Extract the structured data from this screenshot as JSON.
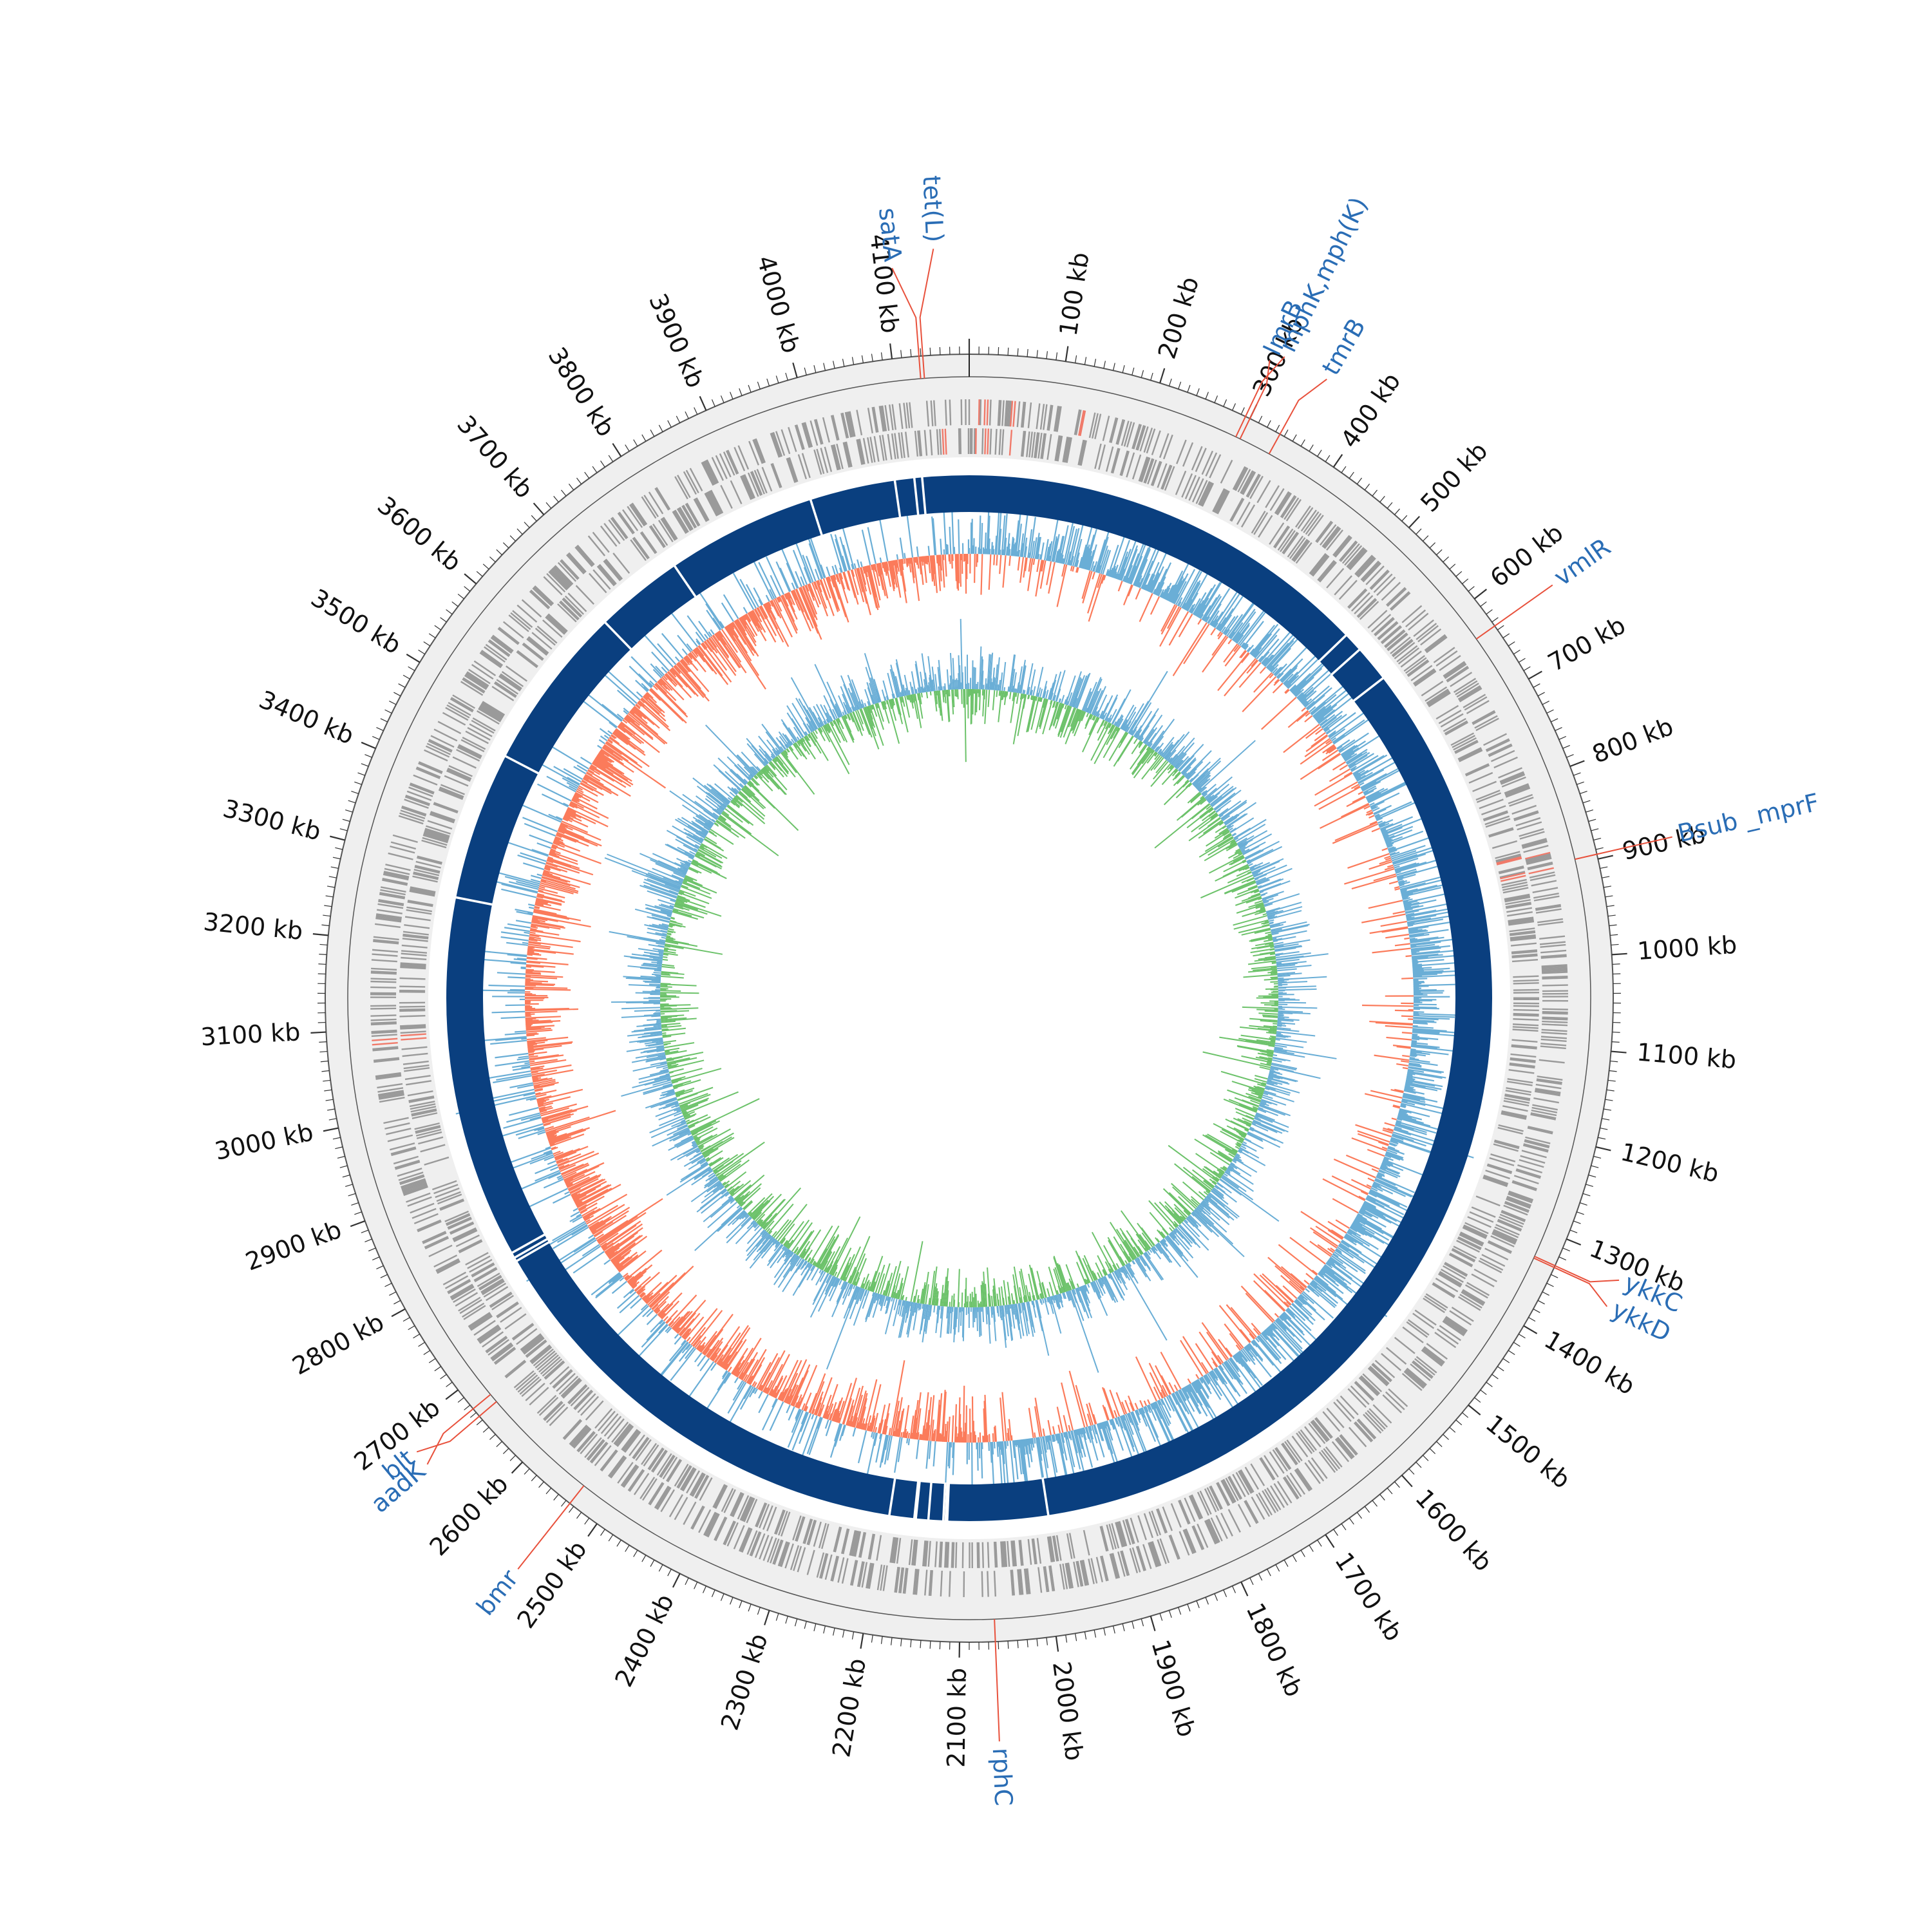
{
  "genome": {
    "length_kb": 4180
  },
  "colors": {
    "ring_background": "#efefef",
    "ring_outline": "#555555",
    "feature_gray": "#9a9a9a",
    "feature_red": "#f07a6a",
    "contig_blue": "#0a3f7f",
    "gc_above": "#6aaed6",
    "gc_below": "#fb7b5b",
    "skew_positive": "#6aaed6",
    "skew_negative": "#6cc26a",
    "label_blue": "#2a6db5",
    "leader_red": "#e8513c"
  },
  "ticks": [
    {
      "kb": 100,
      "label": "100 kb"
    },
    {
      "kb": 200,
      "label": "200 kb"
    },
    {
      "kb": 300,
      "label": "300 kb"
    },
    {
      "kb": 400,
      "label": "400 kb"
    },
    {
      "kb": 500,
      "label": "500 kb"
    },
    {
      "kb": 600,
      "label": "600 kb"
    },
    {
      "kb": 700,
      "label": "700 kb"
    },
    {
      "kb": 800,
      "label": "800 kb"
    },
    {
      "kb": 900,
      "label": "900 kb"
    },
    {
      "kb": 1000,
      "label": "1000 kb"
    },
    {
      "kb": 1100,
      "label": "1100 kb"
    },
    {
      "kb": 1200,
      "label": "1200 kb"
    },
    {
      "kb": 1300,
      "label": "1300 kb"
    },
    {
      "kb": 1400,
      "label": "1400 kb"
    },
    {
      "kb": 1500,
      "label": "1500 kb"
    },
    {
      "kb": 1600,
      "label": "1600 kb"
    },
    {
      "kb": 1700,
      "label": "1700 kb"
    },
    {
      "kb": 1800,
      "label": "1800 kb"
    },
    {
      "kb": 1900,
      "label": "1900 kb"
    },
    {
      "kb": 2000,
      "label": "2000 kb"
    },
    {
      "kb": 2100,
      "label": "2100 kb"
    },
    {
      "kb": 2200,
      "label": "2200 kb"
    },
    {
      "kb": 2300,
      "label": "2300 kb"
    },
    {
      "kb": 2400,
      "label": "2400 kb"
    },
    {
      "kb": 2500,
      "label": "2500 kb"
    },
    {
      "kb": 2600,
      "label": "2600 kb"
    },
    {
      "kb": 2700,
      "label": "2700 kb"
    },
    {
      "kb": 2800,
      "label": "2800 kb"
    },
    {
      "kb": 2900,
      "label": "2900 kb"
    },
    {
      "kb": 3000,
      "label": "3000 kb"
    },
    {
      "kb": 3100,
      "label": "3100 kb"
    },
    {
      "kb": 3200,
      "label": "3200 kb"
    },
    {
      "kb": 3300,
      "label": "3300 kb"
    },
    {
      "kb": 3400,
      "label": "3400 kb"
    },
    {
      "kb": 3500,
      "label": "3500 kb"
    },
    {
      "kb": 3600,
      "label": "3600 kb"
    },
    {
      "kb": 3700,
      "label": "3700 kb"
    },
    {
      "kb": 3800,
      "label": "3800 kb"
    },
    {
      "kb": 3900,
      "label": "3900 kb"
    },
    {
      "kb": 4000,
      "label": "4000 kb"
    },
    {
      "kb": 4100,
      "label": "4100 kb"
    }
  ],
  "genes": [
    {
      "name": "tet(L)",
      "kb": 4132
    },
    {
      "name": "satA",
      "kb": 4128
    },
    {
      "name": "mphK,mph(K)",
      "kb": 295
    },
    {
      "name": "lmrB",
      "kb": 300
    },
    {
      "name": "tmrB",
      "kb": 335
    },
    {
      "name": "vmlR",
      "kb": 635
    },
    {
      "name": "Bsub _mprF",
      "kb": 895
    },
    {
      "name": "ykkC",
      "kb": 1330
    },
    {
      "name": "ykkD",
      "kb": 1332
    },
    {
      "name": "rphC",
      "kb": 2063
    },
    {
      "name": "bmr",
      "kb": 2535
    },
    {
      "name": "aadK",
      "kb": 2675
    },
    {
      "name": "blt",
      "kb": 2665
    }
  ],
  "contig_gaps_kb": [
    4085,
    4110,
    4120,
    3975,
    3782,
    3668,
    3264,
    2797,
    2790,
    2785,
    2192,
    2160,
    2158,
    2142,
    2123,
    2120,
    2118,
    1989,
    607,
    560,
    535,
    3455
  ],
  "gc_content": {
    "legend": ""
  },
  "gc_skew": {
    "legend": ""
  }
}
